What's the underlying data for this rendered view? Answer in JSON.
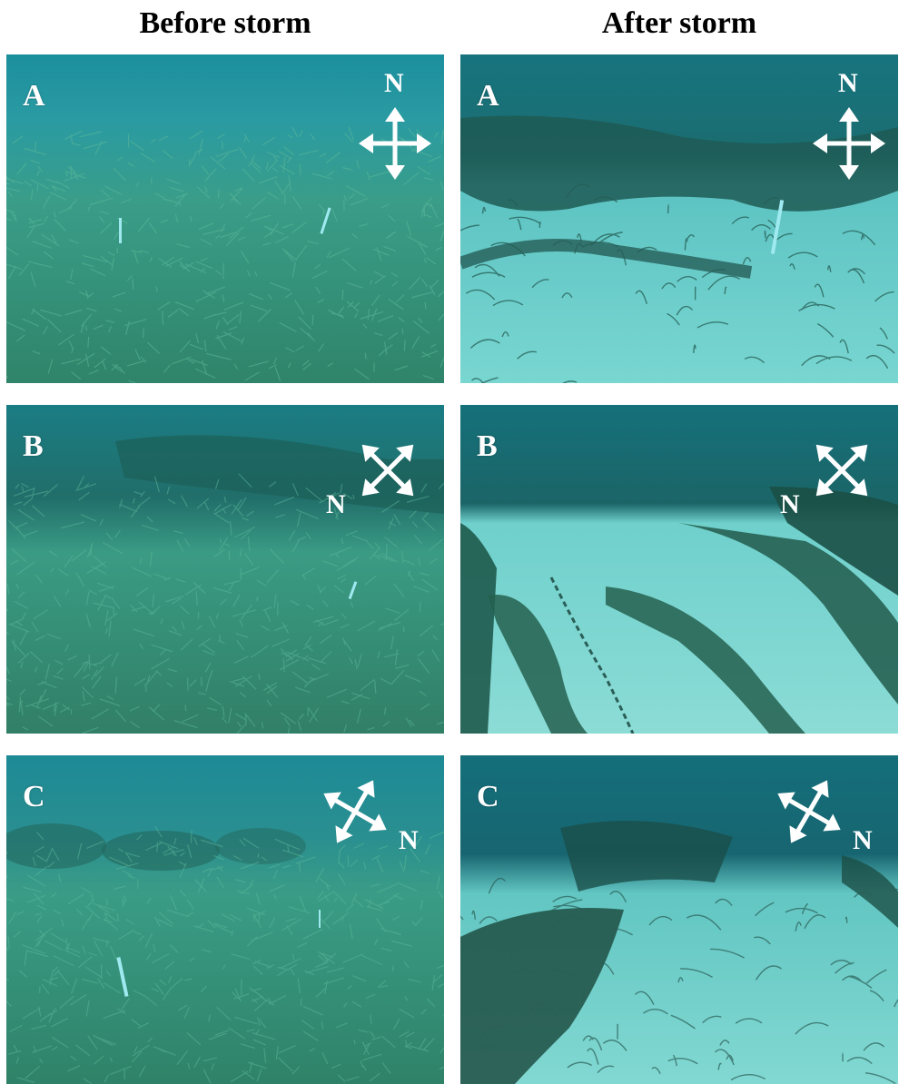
{
  "headers": {
    "before": "Before storm",
    "after": "After storm"
  },
  "north_label": "N",
  "panels": [
    {
      "label": "A",
      "column": "before",
      "scene": "dense seagrass meadow",
      "compass_rotation_deg": 0
    },
    {
      "label": "A",
      "column": "after",
      "scene": "exposed sand with scattered uprooted seagrass",
      "compass_rotation_deg": 0
    },
    {
      "label": "B",
      "column": "before",
      "scene": "dense seagrass meadow",
      "compass_rotation_deg": 45
    },
    {
      "label": "B",
      "column": "after",
      "scene": "sand channels between seagrass strips",
      "compass_rotation_deg": 45
    },
    {
      "label": "C",
      "column": "before",
      "scene": "dense seagrass meadow",
      "compass_rotation_deg": -60
    },
    {
      "label": "C",
      "column": "after",
      "scene": "exposed sand with seagrass patches",
      "compass_rotation_deg": -60
    }
  ],
  "colors": {
    "water_deep": "#0f6f7a",
    "water_mid": "#2e9aa4",
    "seagrass": "#3e9a7e",
    "seagrass_dark": "#1e5a4c",
    "sand": "#6fd0cc",
    "arrow": "#ffffff"
  }
}
